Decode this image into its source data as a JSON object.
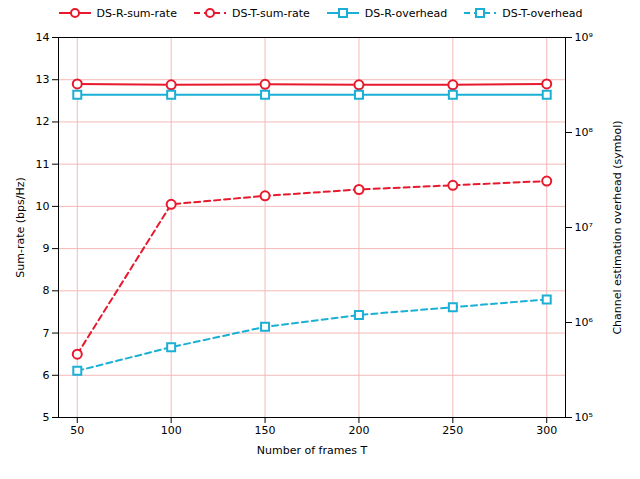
{
  "chart_data": {
    "type": "line",
    "xlabel": "Number of frames T",
    "ylabel": "Sum-rate (bps/Hz)",
    "y2label": "Channel estimation overhead (symbol)",
    "x": [
      50,
      100,
      150,
      200,
      250,
      300
    ],
    "xlim": [
      40,
      310
    ],
    "xticks": [
      50,
      100,
      150,
      200,
      250,
      300
    ],
    "ylim": [
      5,
      14
    ],
    "yticks": [
      5,
      6,
      7,
      8,
      9,
      10,
      11,
      12,
      13,
      14
    ],
    "y2lim": [
      100000,
      1000000000
    ],
    "y2ticks": [
      {
        "value": 100000,
        "label": "10⁵"
      },
      {
        "value": 1000000,
        "label": "10⁶"
      },
      {
        "value": 10000000,
        "label": "10⁷"
      },
      {
        "value": 100000000,
        "label": "10⁸"
      },
      {
        "value": 1000000000,
        "label": "10⁹"
      }
    ],
    "log": "y2",
    "grid": true,
    "legend": "top",
    "series": [
      {
        "name": "DS-R-sum-rate",
        "color": "#e8192c",
        "marker": "circle",
        "line_style": "solid",
        "values": [
          12.9,
          12.88,
          12.89,
          12.88,
          12.88,
          12.9
        ]
      },
      {
        "name": "DS-T-sum-rate",
        "color": "#e8192c",
        "marker": "circle",
        "line_style": "dashed",
        "values": [
          6.5,
          10.05,
          10.25,
          10.4,
          10.5,
          10.6
        ]
      },
      {
        "name": "DS-R-overhead",
        "color": "#1ab0d5",
        "marker": "square",
        "line_style": "solid",
        "axis": "y2",
        "values": [
          250000000,
          250000000,
          250000000,
          250000000,
          250000000,
          250000000
        ]
      },
      {
        "name": "DS-T-overhead",
        "color": "#1ab0d5",
        "marker": "square",
        "line_style": "dashed",
        "axis": "y2",
        "values": [
          310000,
          550000,
          900000,
          1200000,
          1450000,
          1750000
        ]
      }
    ]
  }
}
